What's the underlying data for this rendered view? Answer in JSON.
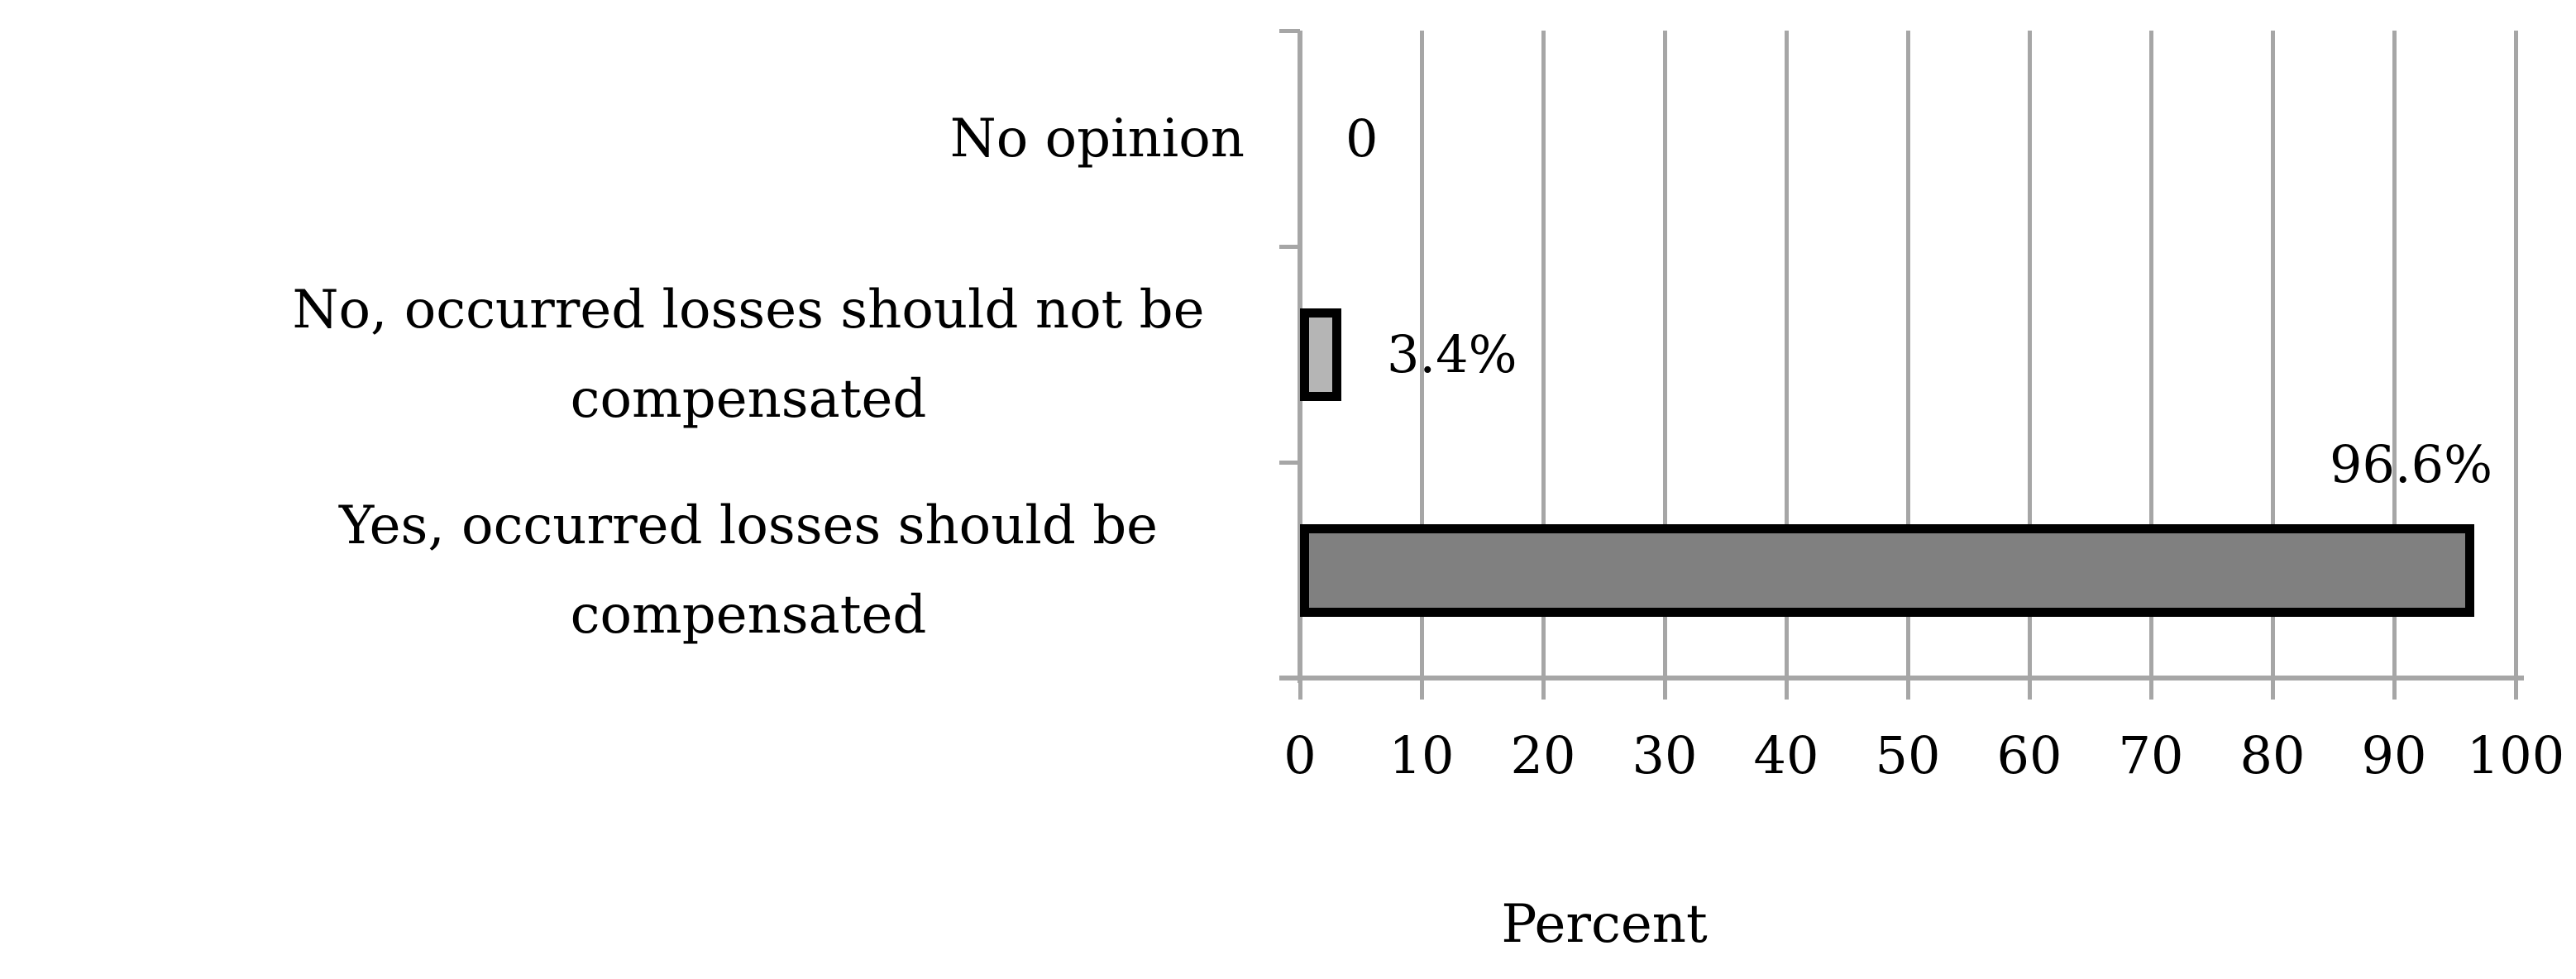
{
  "chart_data": {
    "type": "bar",
    "orientation": "horizontal",
    "title": "",
    "xlabel": "Percent",
    "ylabel": "",
    "categories": [
      "No opinion",
      "No, occurred losses should not be compensated",
      "Yes, occurred losses should be compensated"
    ],
    "values": [
      0,
      3.4,
      96.6
    ],
    "data_labels": [
      "0",
      "3.4%",
      "96.6%"
    ],
    "xlim": [
      0,
      100
    ],
    "xticks": [
      0,
      10,
      20,
      30,
      40,
      50,
      60,
      70,
      80,
      90,
      100
    ],
    "grid": "vertical",
    "legend": "none",
    "data_label_placement": [
      "right-of-bar",
      "right-of-bar",
      "above-bar-end"
    ],
    "colors": {
      "bar_fills": [
        "#b5b5b5",
        "#b5b5b5",
        "#808080"
      ],
      "bar_border": "#000000",
      "gridline": "#a6a6a6",
      "axis_line": "#a6a6a6",
      "text": "#000000",
      "background": "#ffffff"
    }
  }
}
